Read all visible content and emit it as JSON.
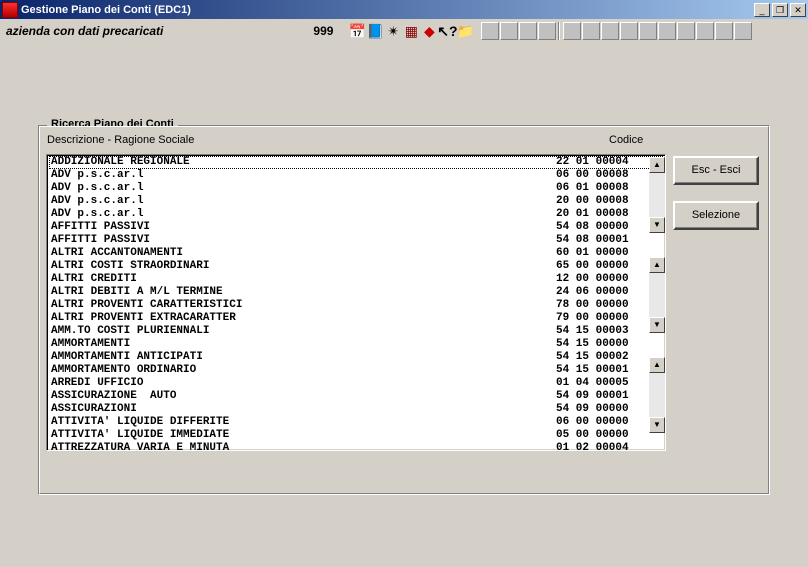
{
  "window": {
    "title": "Gestione Piano dei Conti (EDC1)",
    "minimize": "_",
    "maximize": "❐",
    "close": "✕"
  },
  "toolbar": {
    "company": "azienda con dati precaricati",
    "code": "999"
  },
  "group": {
    "title": "Ricerca Piano dei Conti",
    "col_desc": "Descrizione - Ragione Sociale",
    "col_code": "Codice"
  },
  "buttons": {
    "esc": "Esc - Esci",
    "seleziona": "Selezione"
  },
  "scroll": {
    "up": "▲",
    "down": "▼"
  },
  "rows": [
    {
      "desc": "ADDIZIONALE REGIONALE",
      "code": "22 01 00004",
      "sel": true
    },
    {
      "desc": "ADV p.s.c.ar.l",
      "code": "06 00 00008"
    },
    {
      "desc": "ADV p.s.c.ar.l",
      "code": "06 01 00008"
    },
    {
      "desc": "ADV p.s.c.ar.l",
      "code": "20 00 00008"
    },
    {
      "desc": "ADV p.s.c.ar.l",
      "code": "20 01 00008"
    },
    {
      "desc": "AFFITTI PASSIVI",
      "code": "54 08 00000"
    },
    {
      "desc": "AFFITTI PASSIVI",
      "code": "54 08 00001"
    },
    {
      "desc": "ALTRI ACCANTONAMENTI",
      "code": "60 01 00000"
    },
    {
      "desc": "ALTRI COSTI STRAORDINARI",
      "code": "65 00 00000"
    },
    {
      "desc": "ALTRI CREDITI",
      "code": "12 00 00000"
    },
    {
      "desc": "ALTRI DEBITI A M/L TERMINE",
      "code": "24 06 00000"
    },
    {
      "desc": "ALTRI PROVENTI CARATTERISTICI",
      "code": "78 00 00000"
    },
    {
      "desc": "ALTRI PROVENTI EXTRACARATTER",
      "code": "79 00 00000"
    },
    {
      "desc": "AMM.TO COSTI PLURIENNALI",
      "code": "54 15 00003"
    },
    {
      "desc": "AMMORTAMENTI",
      "code": "54 15 00000"
    },
    {
      "desc": "AMMORTAMENTI ANTICIPATI",
      "code": "54 15 00002"
    },
    {
      "desc": "AMMORTAMENTO ORDINARIO",
      "code": "54 15 00001"
    },
    {
      "desc": "ARREDI UFFICIO",
      "code": "01 04 00005"
    },
    {
      "desc": "ASSICURAZIONE  AUTO",
      "code": "54 09 00001"
    },
    {
      "desc": "ASSICURAZIONI",
      "code": "54 09 00000"
    },
    {
      "desc": "ATTIVITA' LIQUIDE DIFFERITE",
      "code": "06 00 00000"
    },
    {
      "desc": "ATTIVITA' LIQUIDE IMMEDIATE",
      "code": "05 00 00000"
    },
    {
      "desc": "ATTREZZATURA VARIA E MINUTA",
      "code": "01 02 00004"
    }
  ],
  "colors": {
    "bg": "#d4d0c8",
    "title_grad_start": "#0a246a",
    "title_grad_end": "#a6caf0",
    "white": "#ffffff",
    "border_dark": "#808080",
    "border_darker": "#404040"
  }
}
